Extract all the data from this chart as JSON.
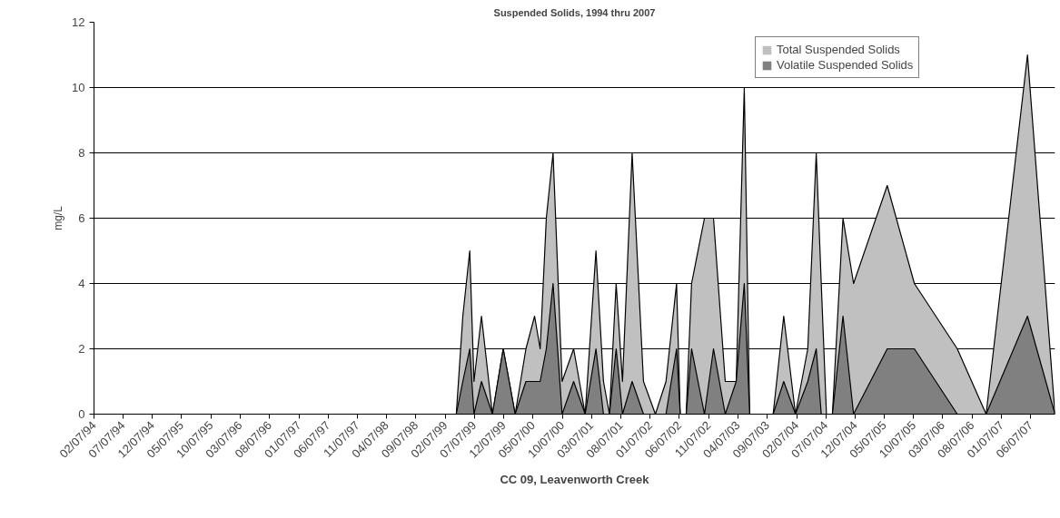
{
  "chart_data": {
    "type": "area",
    "title": "Suspended Solids, 1994 thru 2007",
    "xlabel": "CC 09, Leavenworth Creek",
    "ylabel": "mg/L",
    "x": [
      "1999-04-05",
      "1999-05-09",
      "1999-06-14",
      "1999-07-06",
      "1999-08-14",
      "1999-10-10",
      "1999-12-05",
      "2000-02-05",
      "2000-04-01",
      "2000-05-16",
      "2000-06-14",
      "2000-07-16",
      "2000-08-20",
      "2000-10-06",
      "2000-12-05",
      "2001-02-03",
      "2001-03-31",
      "2001-05-09",
      "2001-06-09",
      "2001-07-14",
      "2001-08-16",
      "2001-10-05",
      "2001-12-03",
      "2002-02-03",
      "2002-03-30",
      "2002-05-24",
      "2002-06-12",
      "2002-06-28",
      "2002-07-13",
      "2002-08-10",
      "2002-10-16",
      "2002-12-02",
      "2003-02-01",
      "2003-03-30",
      "2003-05-11",
      "2003-06-08",
      "2003-08-08",
      "2003-10-08",
      "2003-12-02",
      "2004-02-01",
      "2004-04-05",
      "2004-05-19",
      "2004-06-14",
      "2004-07-11",
      "2004-07-26",
      "2004-08-11",
      "2004-10-05",
      "2004-11-29",
      "2005-05-23",
      "2005-10-11",
      "2006-05-22",
      "2006-10-19",
      "2007-05-22",
      "2007-10-12"
    ],
    "series": [
      {
        "name": "Total Suspended Solids",
        "color": "#c0c0c0",
        "values": [
          0,
          3,
          5,
          1,
          3,
          0,
          2,
          0,
          2,
          3,
          2,
          6,
          8,
          1,
          2,
          0,
          5,
          1,
          0,
          4,
          1,
          8,
          1,
          0,
          1,
          4,
          0,
          null,
          0,
          4,
          6,
          6,
          1,
          1,
          10,
          0,
          null,
          0,
          3,
          0,
          2,
          8,
          4,
          0,
          null,
          0,
          6,
          4,
          7,
          4,
          2,
          0,
          11,
          0
        ]
      },
      {
        "name": "Volatile Suspended Solids",
        "color": "#808080",
        "values": [
          0,
          1,
          2,
          0,
          1,
          0,
          2,
          0,
          1,
          1,
          1,
          2,
          4,
          0,
          1,
          0,
          2,
          0,
          0,
          2,
          0,
          1,
          0,
          0,
          0,
          2,
          0,
          null,
          0,
          2,
          0,
          2,
          0,
          1,
          4,
          0,
          null,
          0,
          1,
          0,
          1,
          2,
          0,
          0,
          null,
          0,
          3,
          0,
          2,
          2,
          0,
          0,
          3,
          0
        ]
      }
    ],
    "xlim": [
      "1994-02-07",
      "2007-10-12"
    ],
    "xticks": [
      {
        "value": "1994-02-07",
        "label": "02/07/94"
      },
      {
        "value": "1994-07-07",
        "label": "07/07/94"
      },
      {
        "value": "1994-12-07",
        "label": "12/07/94"
      },
      {
        "value": "1995-05-07",
        "label": "05/07/95"
      },
      {
        "value": "1995-10-07",
        "label": "10/07/95"
      },
      {
        "value": "1996-03-07",
        "label": "03/07/96"
      },
      {
        "value": "1996-08-07",
        "label": "08/07/96"
      },
      {
        "value": "1997-01-07",
        "label": "01/07/97"
      },
      {
        "value": "1997-06-07",
        "label": "06/07/97"
      },
      {
        "value": "1997-11-07",
        "label": "11/07/97"
      },
      {
        "value": "1998-04-07",
        "label": "04/07/98"
      },
      {
        "value": "1998-09-07",
        "label": "09/07/98"
      },
      {
        "value": "1999-02-07",
        "label": "02/07/99"
      },
      {
        "value": "1999-07-07",
        "label": "07/07/99"
      },
      {
        "value": "1999-12-07",
        "label": "12/07/99"
      },
      {
        "value": "2000-05-07",
        "label": "05/07/00"
      },
      {
        "value": "2000-10-07",
        "label": "10/07/00"
      },
      {
        "value": "2001-03-07",
        "label": "03/07/01"
      },
      {
        "value": "2001-08-07",
        "label": "08/07/01"
      },
      {
        "value": "2002-01-07",
        "label": "01/07/02"
      },
      {
        "value": "2002-06-07",
        "label": "06/07/02"
      },
      {
        "value": "2002-11-07",
        "label": "11/07/02"
      },
      {
        "value": "2003-04-07",
        "label": "04/07/03"
      },
      {
        "value": "2003-09-07",
        "label": "09/07/03"
      },
      {
        "value": "2004-02-07",
        "label": "02/07/04"
      },
      {
        "value": "2004-07-07",
        "label": "07/07/04"
      },
      {
        "value": "2004-12-07",
        "label": "12/07/04"
      },
      {
        "value": "2005-05-07",
        "label": "05/07/05"
      },
      {
        "value": "2005-10-07",
        "label": "10/07/05"
      },
      {
        "value": "2006-03-07",
        "label": "03/07/06"
      },
      {
        "value": "2006-08-07",
        "label": "08/07/06"
      },
      {
        "value": "2007-01-07",
        "label": "01/07/07"
      },
      {
        "value": "2007-06-07",
        "label": "06/07/07"
      }
    ],
    "ylim": [
      0,
      12
    ],
    "yticks": [
      0,
      2,
      4,
      6,
      8,
      10,
      12
    ],
    "grid": "y",
    "legend": "top right"
  }
}
